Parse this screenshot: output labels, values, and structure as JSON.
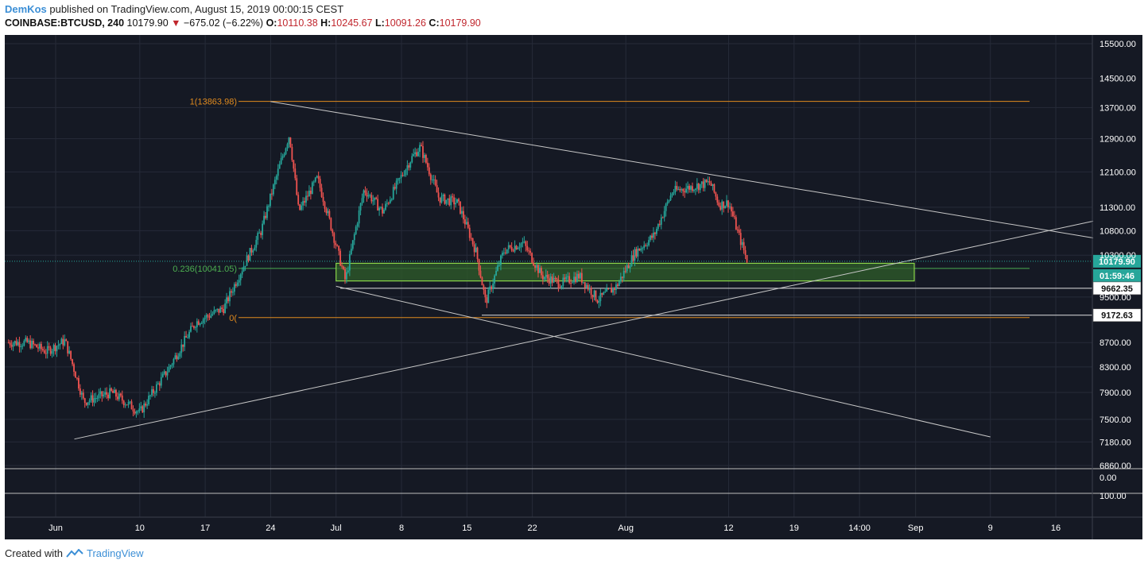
{
  "header": {
    "author": "DemKos",
    "published": " published on TradingView.com, August 15, 2019 00:00:15 CEST",
    "symbol": "COINBASE:BTCUSD, 240",
    "last": "10179.90",
    "change": "−675.02 (−6.22%)",
    "o_label": "O:",
    "o_value": "10110.38",
    "h_label": "H:",
    "h_value": "10245.67",
    "l_label": "L:",
    "l_value": "10091.26",
    "c_label": "C:",
    "c_value": "10179.90"
  },
  "footer": {
    "created_with": "Created with",
    "brand": "TradingView"
  },
  "colors": {
    "background": "#151924",
    "grid": "#262b38",
    "up": "#26a69a",
    "down": "#ef5350",
    "fib": "#e08a1e",
    "zone_fill": "#2f5e2a",
    "zone_border": "#8bd64a",
    "line": "#c8c8c8",
    "text": "#ffffff",
    "price_badge": "#26a69a"
  },
  "chart_data": {
    "type": "candlestick",
    "symbol": "COINBASE:BTCUSD",
    "interval": "240",
    "x_ticks": [
      "Jun",
      "10",
      "17",
      "24",
      "Jul",
      "8",
      "15",
      "22",
      "Aug",
      "12",
      "19",
      "14:00",
      "Sep",
      "9",
      "16"
    ],
    "y_ticks": [
      15500,
      14500,
      13700,
      12900,
      12100,
      11300,
      10800,
      10300,
      9500,
      8700,
      8300,
      7900,
      7500,
      7180,
      6860
    ],
    "ylim": [
      6860,
      15500
    ],
    "scale": "log",
    "grid": true,
    "close_path": [
      {
        "date": "2019-05-29",
        "price": 8700
      },
      {
        "date": "2019-05-31",
        "price": 8550
      },
      {
        "date": "2019-06-02",
        "price": 8730
      },
      {
        "date": "2019-06-04",
        "price": 7760
      },
      {
        "date": "2019-06-07",
        "price": 7900
      },
      {
        "date": "2019-06-10",
        "price": 7600
      },
      {
        "date": "2019-06-13",
        "price": 8250
      },
      {
        "date": "2019-06-16",
        "price": 9050
      },
      {
        "date": "2019-06-19",
        "price": 9300
      },
      {
        "date": "2019-06-21",
        "price": 10050
      },
      {
        "date": "2019-06-23",
        "price": 10800
      },
      {
        "date": "2019-06-26",
        "price": 13000
      },
      {
        "date": "2019-06-27",
        "price": 11200
      },
      {
        "date": "2019-06-29",
        "price": 11950
      },
      {
        "date": "2019-07-01",
        "price": 10500
      },
      {
        "date": "2019-07-02",
        "price": 9800
      },
      {
        "date": "2019-07-04",
        "price": 11700
      },
      {
        "date": "2019-07-06",
        "price": 11200
      },
      {
        "date": "2019-07-09",
        "price": 12400
      },
      {
        "date": "2019-07-10",
        "price": 12700
      },
      {
        "date": "2019-07-12",
        "price": 11500
      },
      {
        "date": "2019-07-14",
        "price": 11400
      },
      {
        "date": "2019-07-16",
        "price": 10350
      },
      {
        "date": "2019-07-17",
        "price": 9400
      },
      {
        "date": "2019-07-19",
        "price": 10400
      },
      {
        "date": "2019-07-21",
        "price": 10550
      },
      {
        "date": "2019-07-23",
        "price": 9900
      },
      {
        "date": "2019-07-25",
        "price": 9750
      },
      {
        "date": "2019-07-27",
        "price": 9900
      },
      {
        "date": "2019-07-29",
        "price": 9450
      },
      {
        "date": "2019-07-31",
        "price": 9700
      },
      {
        "date": "2019-08-02",
        "price": 10350
      },
      {
        "date": "2019-08-04",
        "price": 10700
      },
      {
        "date": "2019-08-06",
        "price": 11650
      },
      {
        "date": "2019-08-08",
        "price": 11750
      },
      {
        "date": "2019-08-10",
        "price": 11850
      },
      {
        "date": "2019-08-11",
        "price": 11350
      },
      {
        "date": "2019-08-12",
        "price": 11400
      },
      {
        "date": "2019-08-13",
        "price": 10750
      },
      {
        "date": "2019-08-14",
        "price": 10179.9
      }
    ],
    "fib_levels": [
      {
        "label": "1(13863.98)",
        "value": 13863.98
      },
      {
        "label": "0.236(10041.05)",
        "value": 10041.05
      },
      {
        "label": "0(",
        "value": 9130
      }
    ],
    "horizontal_lines": [
      {
        "label": "9662.35",
        "value": 9662.35
      },
      {
        "label": "9172.63",
        "value": 9172.63
      }
    ],
    "support_zone": {
      "low": 9800,
      "high": 10140
    },
    "trendlines": [
      {
        "from": {
          "date": "2019-06-24",
          "price": 13860
        },
        "to": {
          "date": "2019-09-20",
          "price": 10650
        }
      },
      {
        "from": {
          "date": "2019-06-03",
          "price": 7220
        },
        "to": {
          "date": "2019-09-20",
          "price": 11000
        }
      },
      {
        "from": {
          "date": "2019-07-01",
          "price": 9700
        },
        "to": {
          "date": "2019-09-09",
          "price": 7250
        }
      }
    ],
    "price_labels": {
      "last": "10179.90",
      "countdown": "01:59:46"
    },
    "indicator_ticks": [
      "0.00",
      "100.00"
    ]
  }
}
